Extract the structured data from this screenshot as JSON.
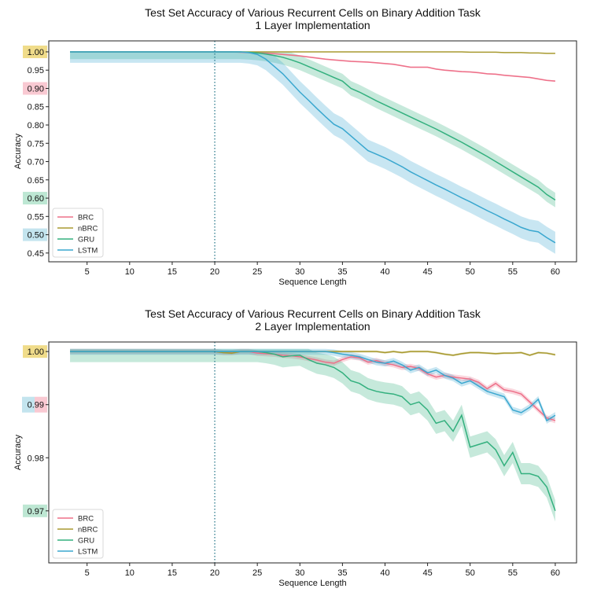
{
  "chart_data": [
    {
      "type": "line",
      "title": "Test Set Accuracy of Various Recurrent Cells on Binary Addition Task",
      "subtitle": "1 Layer Implementation",
      "xlabel": "Sequence Length",
      "ylabel": "Accuracy",
      "xlim": [
        0.5,
        62.5
      ],
      "ylim": [
        0.426,
        1.03
      ],
      "xticks": [
        5,
        10,
        15,
        20,
        25,
        30,
        35,
        40,
        45,
        50,
        55,
        60
      ],
      "yticks": [
        0.45,
        0.5,
        0.55,
        0.6,
        0.65,
        0.7,
        0.75,
        0.8,
        0.85,
        0.9,
        0.95,
        1.0
      ],
      "ytick_labels": [
        "0.45",
        "0.50",
        "0.55",
        "0.60",
        "0.65",
        "0.70",
        "0.75",
        "0.80",
        "0.85",
        "0.90",
        "0.95",
        "1.00"
      ],
      "highlighted_ticks": [
        {
          "value": 1.0,
          "color": "#f0dc8a"
        },
        {
          "value": 0.9,
          "color": "#f9c9d2"
        },
        {
          "value": 0.6,
          "color": "#bde7d3"
        },
        {
          "value": 0.5,
          "color": "#c3e4ee"
        }
      ],
      "vline": 20,
      "legend_position": "lower-left",
      "grid": false,
      "x": [
        3,
        4,
        5,
        6,
        7,
        8,
        9,
        10,
        11,
        12,
        13,
        14,
        15,
        16,
        17,
        18,
        19,
        20,
        21,
        22,
        23,
        24,
        25,
        26,
        27,
        28,
        29,
        30,
        31,
        32,
        33,
        34,
        35,
        36,
        37,
        38,
        39,
        40,
        41,
        42,
        43,
        44,
        45,
        46,
        47,
        48,
        49,
        50,
        51,
        52,
        53,
        54,
        55,
        56,
        57,
        58,
        59,
        60
      ],
      "series": [
        {
          "name": "BRC",
          "color": "#ee7089",
          "band": 0.002,
          "values": [
            1,
            1,
            1,
            1,
            1,
            1,
            1,
            1,
            1,
            1,
            1,
            1,
            1,
            1,
            1,
            1,
            1,
            1,
            1,
            1,
            0.999,
            0.998,
            0.997,
            0.996,
            0.995,
            0.993,
            0.991,
            0.989,
            0.986,
            0.983,
            0.98,
            0.978,
            0.976,
            0.974,
            0.973,
            0.972,
            0.97,
            0.968,
            0.966,
            0.962,
            0.958,
            0.958,
            0.958,
            0.953,
            0.95,
            0.948,
            0.946,
            0.945,
            0.943,
            0.94,
            0.939,
            0.936,
            0.934,
            0.932,
            0.93,
            0.926,
            0.922,
            0.92
          ]
        },
        {
          "name": "nBRC",
          "color": "#a89a30",
          "band": 0.001,
          "values": [
            1,
            1,
            1,
            1,
            1,
            1,
            1,
            1,
            1,
            1,
            1,
            1,
            1,
            1,
            1,
            1,
            1,
            1,
            1,
            1,
            1,
            1,
            1,
            1,
            1,
            1,
            1,
            1,
            1,
            1,
            1,
            1,
            1,
            1,
            1,
            1,
            1,
            1,
            1,
            1,
            1,
            1,
            1,
            1,
            1,
            1,
            1,
            0.999,
            0.999,
            0.999,
            0.999,
            0.998,
            0.998,
            0.998,
            0.997,
            0.997,
            0.996,
            0.996
          ]
        },
        {
          "name": "GRU",
          "color": "#33b07e",
          "band": 0.02,
          "values": [
            1,
            1,
            1,
            1,
            1,
            1,
            1,
            1,
            1,
            1,
            1,
            1,
            1,
            1,
            1,
            1,
            1,
            1,
            1,
            1,
            1,
            0.999,
            0.997,
            0.994,
            0.99,
            0.985,
            0.978,
            0.97,
            0.96,
            0.95,
            0.94,
            0.93,
            0.92,
            0.9,
            0.89,
            0.878,
            0.866,
            0.855,
            0.844,
            0.833,
            0.822,
            0.811,
            0.8,
            0.789,
            0.777,
            0.765,
            0.753,
            0.74,
            0.727,
            0.714,
            0.7,
            0.686,
            0.672,
            0.658,
            0.644,
            0.63,
            0.61,
            0.595
          ]
        },
        {
          "name": "LSTM",
          "color": "#3aa7cf",
          "band": 0.03,
          "values": [
            1,
            1,
            1,
            1,
            1,
            1,
            1,
            1,
            1,
            1,
            1,
            1,
            1,
            1,
            1,
            1,
            1,
            1,
            1,
            1,
            1,
            0.998,
            0.993,
            0.98,
            0.96,
            0.94,
            0.915,
            0.89,
            0.868,
            0.845,
            0.823,
            0.802,
            0.79,
            0.77,
            0.75,
            0.73,
            0.72,
            0.71,
            0.698,
            0.686,
            0.672,
            0.66,
            0.648,
            0.636,
            0.625,
            0.613,
            0.601,
            0.59,
            0.578,
            0.566,
            0.555,
            0.543,
            0.532,
            0.52,
            0.512,
            0.508,
            0.492,
            0.478
          ]
        }
      ]
    },
    {
      "type": "line",
      "title": "Test Set Accuracy of Various Recurrent Cells on Binary Addition Task",
      "subtitle": "2 Layer Implementation",
      "xlabel": "Sequence Length",
      "ylabel": "Accuracy",
      "xlim": [
        0.5,
        62.5
      ],
      "ylim": [
        0.9602,
        1.0018
      ],
      "xticks": [
        5,
        10,
        15,
        20,
        25,
        30,
        35,
        40,
        45,
        50,
        55,
        60
      ],
      "yticks": [
        0.97,
        0.98,
        0.99,
        1.0
      ],
      "ytick_labels": [
        "0.97",
        "0.98",
        "0.99",
        "1.00"
      ],
      "highlighted_ticks": [
        {
          "value": 1.0,
          "color": "#f0dc8a"
        },
        {
          "value": 0.99,
          "color": "#c3e4ee",
          "color2": "#f9c9d2"
        },
        {
          "value": 0.97,
          "color": "#bde7d3"
        }
      ],
      "vline": 20,
      "legend_position": "lower-left",
      "grid": false,
      "x": [
        3,
        4,
        5,
        6,
        7,
        8,
        9,
        10,
        11,
        12,
        13,
        14,
        15,
        16,
        17,
        18,
        19,
        20,
        21,
        22,
        23,
        24,
        25,
        26,
        27,
        28,
        29,
        30,
        31,
        32,
        33,
        34,
        35,
        36,
        37,
        38,
        39,
        40,
        41,
        42,
        43,
        44,
        45,
        46,
        47,
        48,
        49,
        50,
        51,
        52,
        53,
        54,
        55,
        56,
        57,
        58,
        59,
        60
      ],
      "series": [
        {
          "name": "BRC",
          "color": "#ee7089",
          "band": 0.0005,
          "values": [
            1,
            1,
            1,
            1,
            1,
            1,
            1,
            1,
            1,
            1,
            1,
            1,
            1,
            1,
            1,
            1,
            1,
            1,
            0.9998,
            0.9998,
            1,
            1,
            0.9997,
            0.9996,
            0.9995,
            0.9993,
            0.9992,
            0.999,
            0.9987,
            0.9984,
            0.998,
            0.9978,
            0.9985,
            0.999,
            0.9988,
            0.998,
            0.9983,
            0.9978,
            0.9975,
            0.997,
            0.9972,
            0.9968,
            0.9958,
            0.9952,
            0.9955,
            0.9952,
            0.995,
            0.9948,
            0.9942,
            0.993,
            0.994,
            0.9928,
            0.9925,
            0.992,
            0.9905,
            0.989,
            0.9875,
            0.987
          ]
        },
        {
          "name": "nBRC",
          "color": "#a89a30",
          "band": 0.0002,
          "values": [
            1,
            1,
            1,
            1,
            1,
            1,
            1,
            1,
            1,
            1,
            1,
            1,
            1,
            1,
            1,
            1,
            1,
            1,
            0.9998,
            0.9997,
            1,
            1,
            1,
            1,
            1,
            1,
            1,
            1,
            1,
            1,
            1,
            1,
            1,
            1,
            1,
            1,
            1,
            0.9998,
            1,
            0.9998,
            1,
            1,
            1,
            0.9998,
            0.9995,
            0.9993,
            0.9996,
            0.9998,
            0.9998,
            0.9997,
            0.9996,
            0.9997,
            0.9997,
            0.9998,
            0.9993,
            0.9998,
            0.9997,
            0.9994
          ]
        },
        {
          "name": "GRU",
          "color": "#33b07e",
          "band": 0.002,
          "values": [
            1,
            1,
            1,
            1,
            1,
            1,
            1,
            1,
            1,
            1,
            1,
            1,
            1,
            1,
            1,
            1,
            1,
            1,
            1,
            1,
            1,
            1,
            1,
            0.9998,
            0.9995,
            0.999,
            0.9992,
            0.9993,
            0.9985,
            0.9978,
            0.9975,
            0.997,
            0.996,
            0.9945,
            0.994,
            0.993,
            0.9925,
            0.9922,
            0.992,
            0.9915,
            0.99,
            0.9905,
            0.989,
            0.9865,
            0.987,
            0.985,
            0.988,
            0.982,
            0.9825,
            0.983,
            0.9815,
            0.9785,
            0.981,
            0.977,
            0.977,
            0.9765,
            0.9745,
            0.97
          ]
        },
        {
          "name": "LSTM",
          "color": "#3aa7cf",
          "band": 0.0006,
          "values": [
            1,
            1,
            1,
            1,
            1,
            1,
            1,
            1,
            1,
            1,
            1,
            1,
            1,
            1,
            1,
            1,
            1,
            1,
            1,
            1,
            1,
            1,
            1,
            1,
            1,
            1,
            1,
            1,
            1,
            1,
            1,
            0.9998,
            0.9995,
            0.9993,
            0.999,
            0.9985,
            0.998,
            0.9978,
            0.9982,
            0.9975,
            0.9965,
            0.997,
            0.996,
            0.9965,
            0.9955,
            0.995,
            0.994,
            0.9945,
            0.9935,
            0.9925,
            0.992,
            0.9915,
            0.989,
            0.9885,
            0.9895,
            0.991,
            0.987,
            0.988
          ]
        }
      ]
    }
  ]
}
